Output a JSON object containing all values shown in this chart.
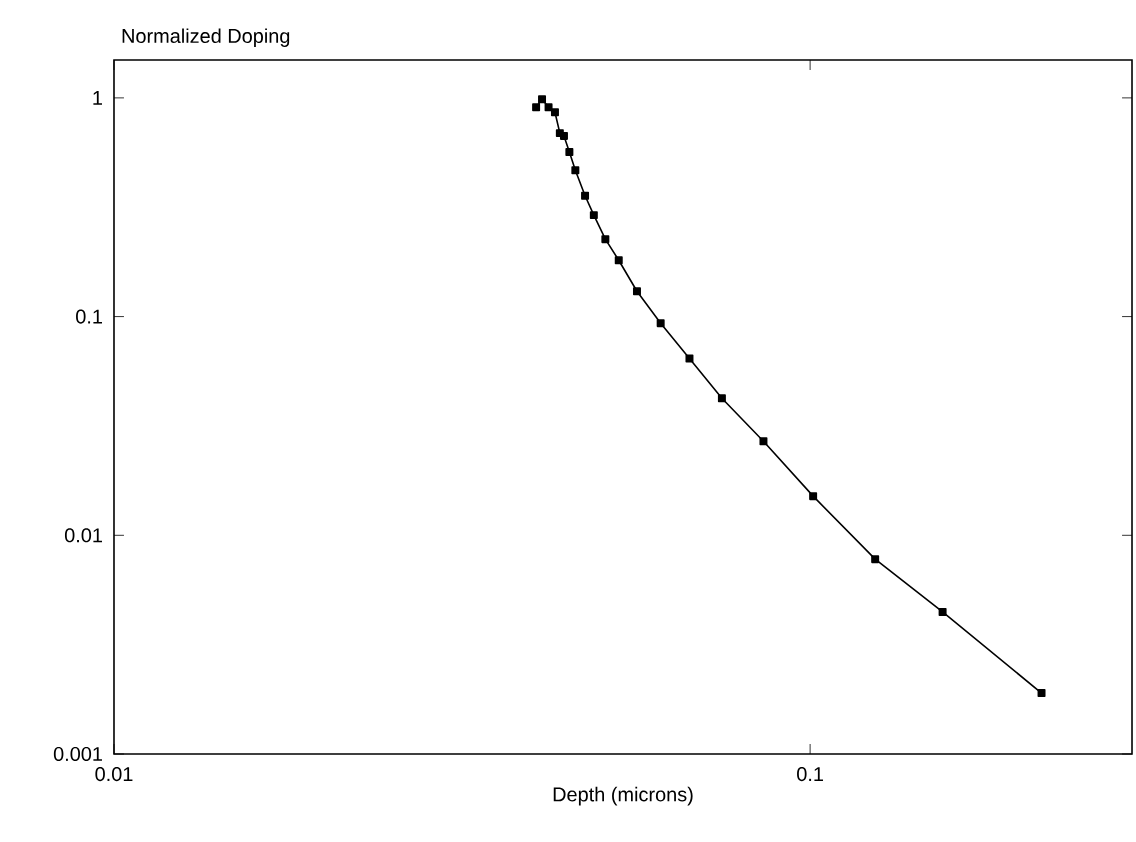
{
  "chart_data": {
    "type": "line",
    "ylabel": "Normalized Doping",
    "xlabel": "Depth (microns)",
    "log": "xy",
    "marker": "square",
    "line_style": "solid",
    "xlim": [
      0.01,
      0.29
    ],
    "xticks": [
      0.01,
      0.1
    ],
    "ylim": [
      0.001,
      1.49
    ],
    "yticks": [
      0.001,
      0.01,
      0.1,
      1
    ],
    "series": [
      {
        "color": "#000000",
        "x": [
          0.0404,
          0.041,
          0.0412,
          0.0421,
          0.043,
          0.0437,
          0.0443,
          0.0451,
          0.046,
          0.0475,
          0.0489,
          0.0508,
          0.0531,
          0.0564,
          0.061,
          0.0671,
          0.0747,
          0.0857,
          0.101,
          0.124,
          0.155,
          0.215
        ],
        "values": [
          0.905,
          null,
          0.985,
          0.905,
          0.86,
          0.69,
          0.67,
          0.565,
          0.467,
          0.357,
          0.291,
          0.226,
          0.181,
          0.1306,
          0.0933,
          0.0643,
          0.0423,
          0.0269,
          0.0151,
          0.00778,
          0.00446,
          0.0019
        ]
      }
    ]
  }
}
